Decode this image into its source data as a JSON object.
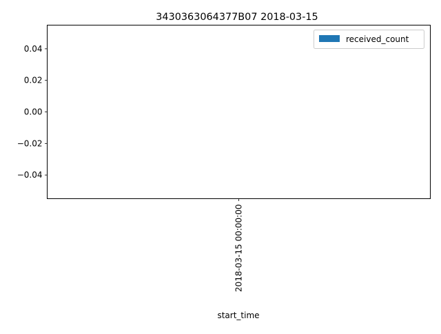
{
  "chart_data": {
    "type": "bar",
    "title": "3430363064377B07 2018-03-15",
    "xlabel": "start_time",
    "ylabel": "",
    "categories": [
      "2018-03-15 00:00:00"
    ],
    "series": [
      {
        "name": "received_count",
        "values": [
          0
        ],
        "color": "#1f77b4"
      }
    ],
    "ylim": [
      -0.055,
      0.055
    ],
    "yticks": [
      0.04,
      0.02,
      0.0,
      -0.02,
      -0.04
    ],
    "ytick_labels": [
      "0.04",
      "0.02",
      "0.00",
      "−0.02",
      "−0.04"
    ],
    "grid": false,
    "legend_position": "top-right"
  }
}
